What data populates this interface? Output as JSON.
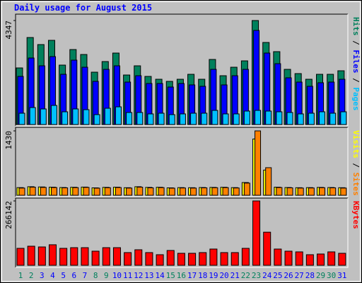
{
  "chart_data": [
    {
      "type": "bar",
      "title": "Daily usage for August 2015",
      "legend_separator": " / ",
      "ylim": [
        0,
        4347
      ],
      "yticks": [
        4347
      ],
      "series": [
        {
          "name": "Hits",
          "color": "#00805c",
          "values": [
            2366,
            3637,
            3342,
            3519,
            2484,
            3134,
            2927,
            2188,
            2632,
            2987,
            2070,
            2454,
            2011,
            1892,
            1804,
            1892,
            2099,
            1892,
            2720,
            2040,
            2395,
            2661,
            4347,
            3430,
            3046,
            2306,
            2129,
            1892,
            2099,
            2099,
            2247
          ]
        },
        {
          "name": "Files",
          "color": "#0000ff",
          "values": [
            2011,
            2780,
            2454,
            2839,
            2099,
            2691,
            2395,
            1804,
            2306,
            2454,
            1774,
            2040,
            1715,
            1715,
            1567,
            1715,
            1656,
            1597,
            2306,
            1656,
            2040,
            2306,
            3933,
            2987,
            2543,
            1952,
            1774,
            1597,
            1745,
            1774,
            1892
          ]
        },
        {
          "name": "Pages",
          "color": "#00c0ff",
          "values": [
            473,
            710,
            651,
            798,
            532,
            651,
            621,
            414,
            680,
            739,
            503,
            503,
            444,
            473,
            414,
            444,
            473,
            473,
            591,
            444,
            444,
            562,
            591,
            562,
            532,
            503,
            444,
            473,
            532,
            473,
            532
          ]
        }
      ]
    },
    {
      "type": "bar",
      "legend_separator": " / ",
      "ylim": [
        0,
        1430
      ],
      "yticks": [
        1430
      ],
      "series": [
        {
          "name": "Visits",
          "color": "#ffff00",
          "values": [
            170,
            190,
            185,
            180,
            172,
            178,
            182,
            165,
            176,
            180,
            168,
            190,
            175,
            178,
            165,
            170,
            168,
            172,
            175,
            178,
            170,
            283,
            1250,
            560,
            180,
            172,
            168,
            170,
            175,
            172,
            168
          ]
        },
        {
          "name": "Sites",
          "color": "#ff8000",
          "values": [
            160,
            180,
            175,
            172,
            165,
            170,
            175,
            158,
            168,
            172,
            160,
            180,
            165,
            170,
            158,
            162,
            160,
            165,
            168,
            170,
            162,
            270,
            1430,
            613,
            172,
            165,
            160,
            162,
            168,
            165,
            160
          ]
        }
      ]
    },
    {
      "type": "bar",
      "ylim": [
        0,
        266142
      ],
      "yticks": [
        266142
      ],
      "categories": [
        "1",
        "2",
        "3",
        "4",
        "5",
        "6",
        "7",
        "8",
        "9",
        "10",
        "11",
        "12",
        "13",
        "14",
        "15",
        "16",
        "17",
        "18",
        "19",
        "20",
        "21",
        "22",
        "23",
        "24",
        "25",
        "26",
        "27",
        "28",
        "29",
        "30",
        "31"
      ],
      "category_colors": [
        "#00805c",
        "#00805c",
        "#0000ff",
        "#0000ff",
        "#0000ff",
        "#0000ff",
        "#0000ff",
        "#00805c",
        "#00805c",
        "#0000ff",
        "#0000ff",
        "#0000ff",
        "#0000ff",
        "#0000ff",
        "#00805c",
        "#00805c",
        "#0000ff",
        "#0000ff",
        "#0000ff",
        "#0000ff",
        "#0000ff",
        "#00805c",
        "#00805c",
        "#0000ff",
        "#0000ff",
        "#0000ff",
        "#0000ff",
        "#0000ff",
        "#00805c",
        "#00805c",
        "#0000ff"
      ],
      "series": [
        {
          "name": "KBytes",
          "color": "#ff0000",
          "values": [
            70200,
            79000,
            76000,
            85000,
            70200,
            73000,
            73000,
            58500,
            73000,
            73000,
            52650,
            64350,
            52650,
            43900,
            61400,
            49700,
            49700,
            52650,
            67300,
            52650,
            52650,
            70200,
            266142,
            137000,
            67300,
            58500,
            55600,
            43900,
            46800,
            55600,
            49700
          ]
        }
      ]
    }
  ]
}
